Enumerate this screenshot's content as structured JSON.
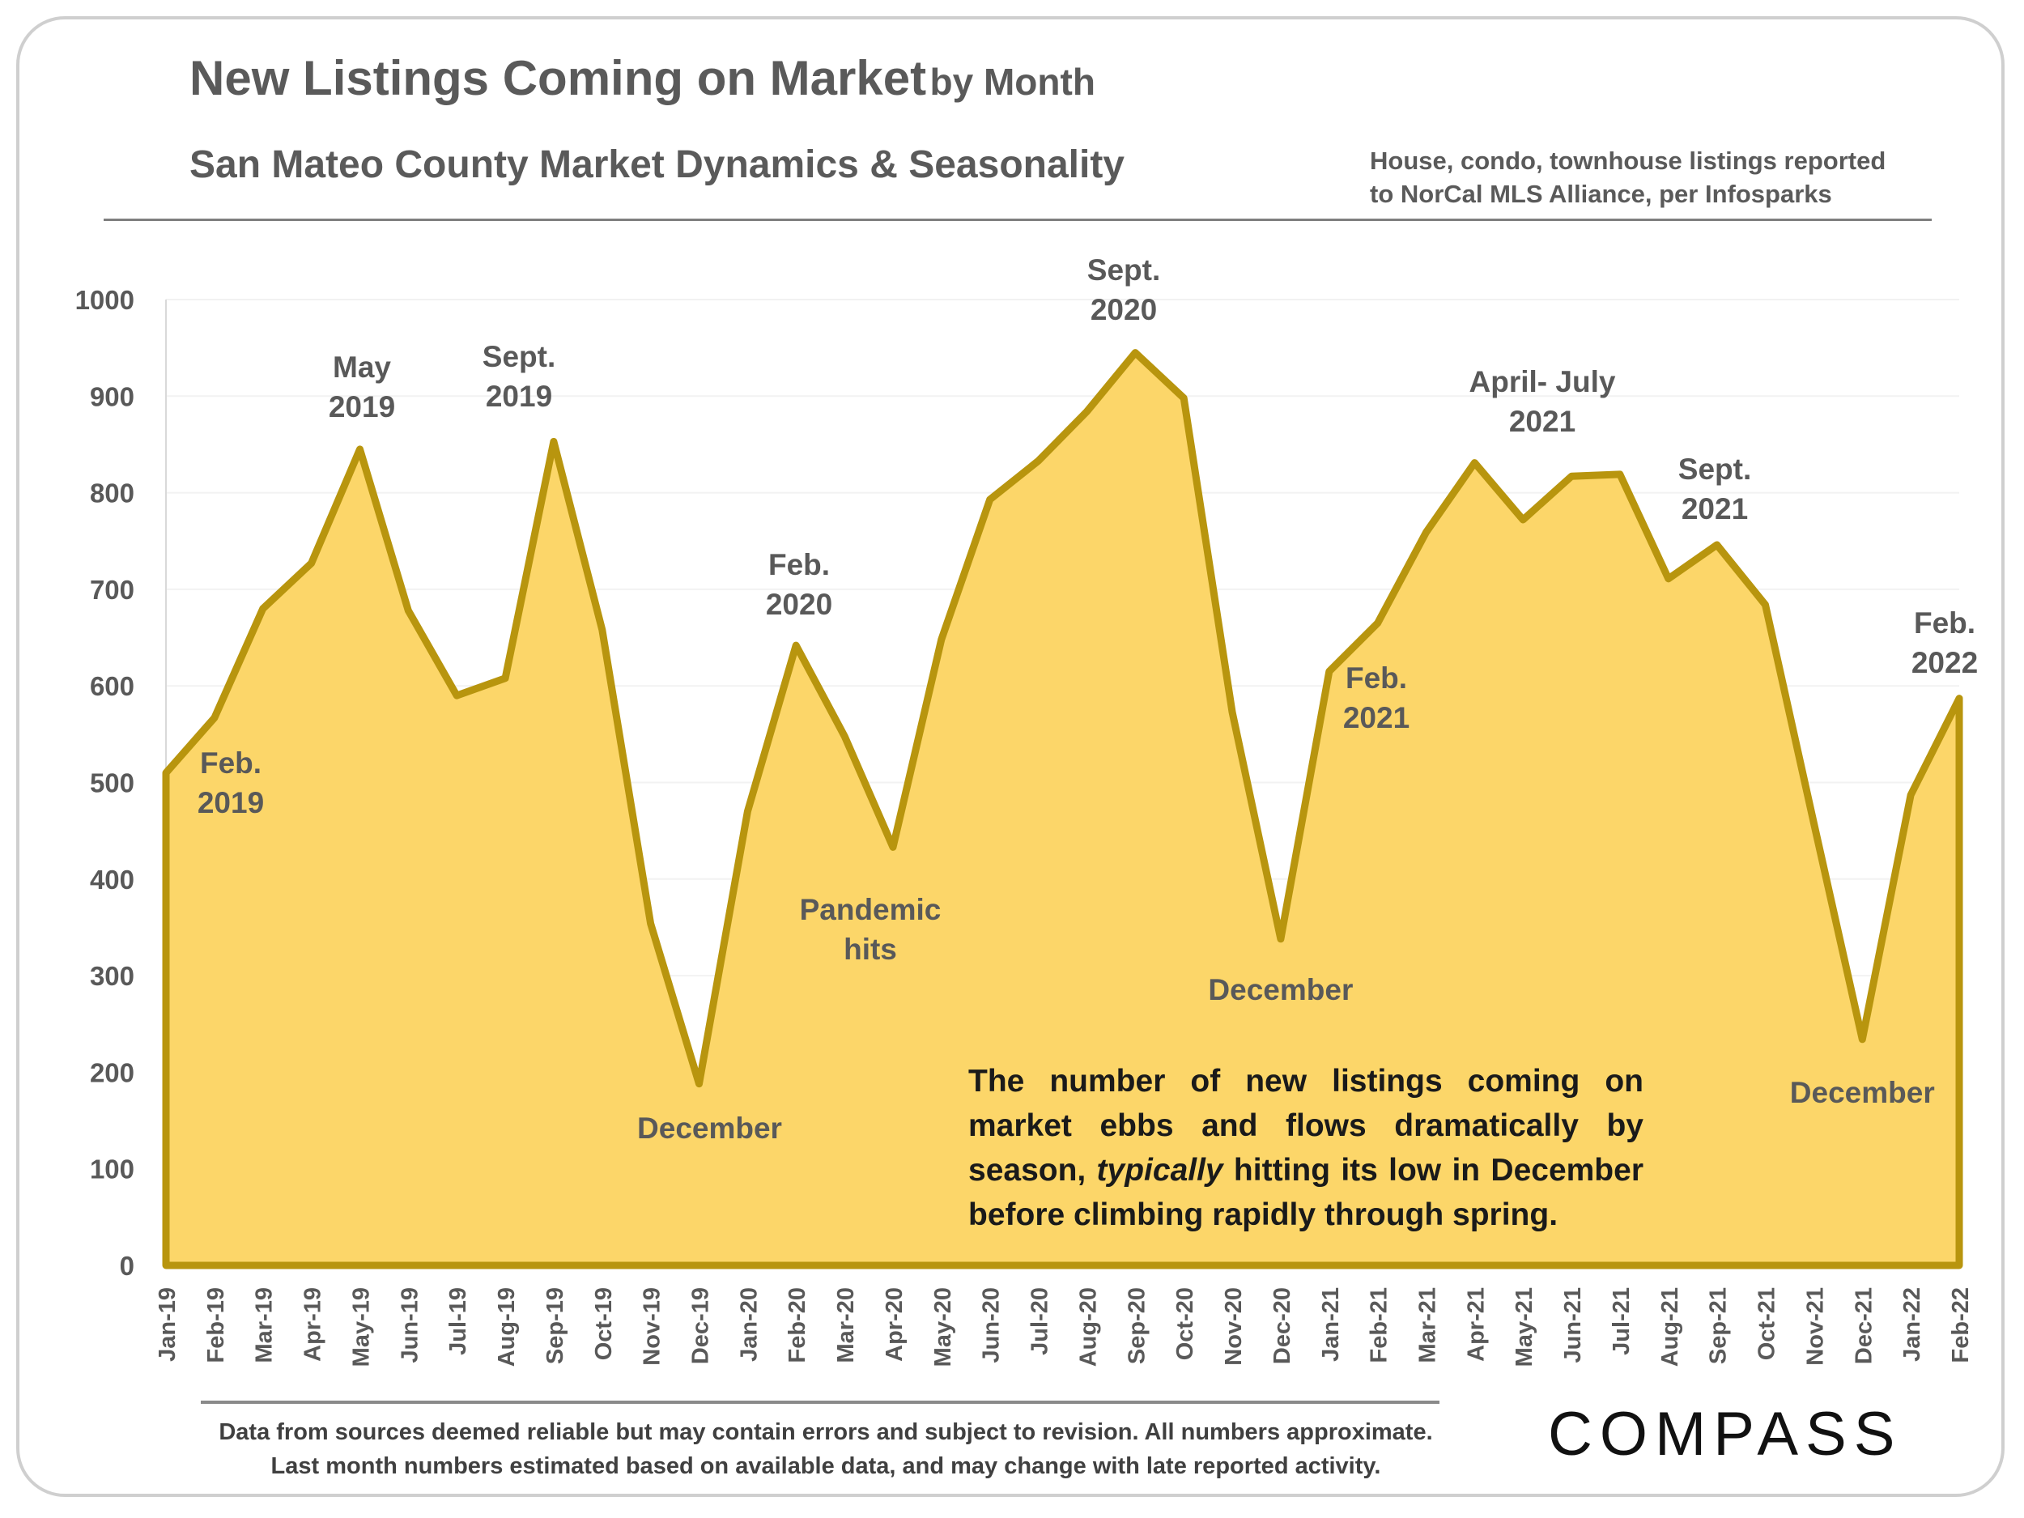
{
  "header": {
    "title_main": "New Listings Coming on Market",
    "title_sub": "by Month",
    "subtitle": "San Mateo County Market Dynamics & Seasonality",
    "source_line1": "House, condo, townhouse listings reported",
    "source_line2": "to NorCal MLS Alliance, per Infosparks"
  },
  "note": {
    "part1": "The number of new listings coming on market ebbs and flows dramatically by season, ",
    "emphasis": "typically",
    "part2": " hitting its low in December before climbing rapidly through spring."
  },
  "footer": {
    "line1": "Data from sources deemed reliable but may contain errors and subject to revision. All numbers approximate.",
    "line2": "Last month numbers estimated based on available data, and may change with late reported activity."
  },
  "brand": {
    "logo": "COMPASS"
  },
  "colors": {
    "fill": "#fcd669",
    "line": "#b8950e",
    "text": "#595959",
    "grid": "#f2f2f2"
  },
  "chart_data": {
    "type": "area",
    "title": "New Listings Coming on Market by Month",
    "xlabel": "",
    "ylabel": "",
    "ylim": [
      0,
      1000
    ],
    "yticks": [
      0,
      100,
      200,
      300,
      400,
      500,
      600,
      700,
      800,
      900,
      1000
    ],
    "grid": true,
    "categories": [
      "Jan-19",
      "Feb-19",
      "Mar-19",
      "Apr-19",
      "May-19",
      "Jun-19",
      "Jul-19",
      "Aug-19",
      "Sep-19",
      "Oct-19",
      "Nov-19",
      "Dec-19",
      "Jan-20",
      "Feb-20",
      "Mar-20",
      "Apr-20",
      "May-20",
      "Jun-20",
      "Jul-20",
      "Aug-20",
      "Sep-20",
      "Oct-20",
      "Nov-20",
      "Dec-20",
      "Jan-21",
      "Feb-21",
      "Mar-21",
      "Apr-21",
      "May-21",
      "Jun-21",
      "Jul-21",
      "Aug-21",
      "Sep-21",
      "Oct-21",
      "Nov-21",
      "Dec-21",
      "Jan-22",
      "Feb-22"
    ],
    "series": [
      {
        "name": "New Listings",
        "values": [
          510,
          567,
          680,
          727,
          845,
          678,
          590,
          608,
          853,
          658,
          354,
          188,
          470,
          642,
          548,
          433,
          648,
          793,
          833,
          884,
          945,
          898,
          573,
          338,
          615,
          665,
          759,
          831,
          772,
          817,
          819,
          711,
          746,
          684,
          458,
          234,
          487,
          587
        ]
      }
    ],
    "annotations": [
      {
        "text": [
          "Feb.",
          "2019"
        ],
        "index": 1,
        "value": 567
      },
      {
        "text": [
          "May",
          "2019"
        ],
        "index": 4,
        "value": 845
      },
      {
        "text": [
          "Sept.",
          "2019"
        ],
        "index": 8,
        "value": 853
      },
      {
        "text": [
          "December"
        ],
        "index": 11,
        "value": 188
      },
      {
        "text": [
          "Feb.",
          "2020"
        ],
        "index": 13,
        "value": 642
      },
      {
        "text": [
          "Pandemic",
          "hits"
        ],
        "index": 15,
        "value": 433
      },
      {
        "text": [
          "Sept.",
          "2020"
        ],
        "index": 20,
        "value": 945
      },
      {
        "text": [
          "December"
        ],
        "index": 23,
        "value": 338
      },
      {
        "text": [
          "Feb.",
          "2021"
        ],
        "index": 25,
        "value": 665
      },
      {
        "text": [
          "April- July",
          "2021"
        ],
        "index": 28,
        "value": 831
      },
      {
        "text": [
          "Sept.",
          "2021"
        ],
        "index": 32,
        "value": 746
      },
      {
        "text": [
          "December"
        ],
        "index": 35,
        "value": 234
      },
      {
        "text": [
          "Feb.",
          "2022"
        ],
        "index": 37,
        "value": 587
      }
    ]
  }
}
